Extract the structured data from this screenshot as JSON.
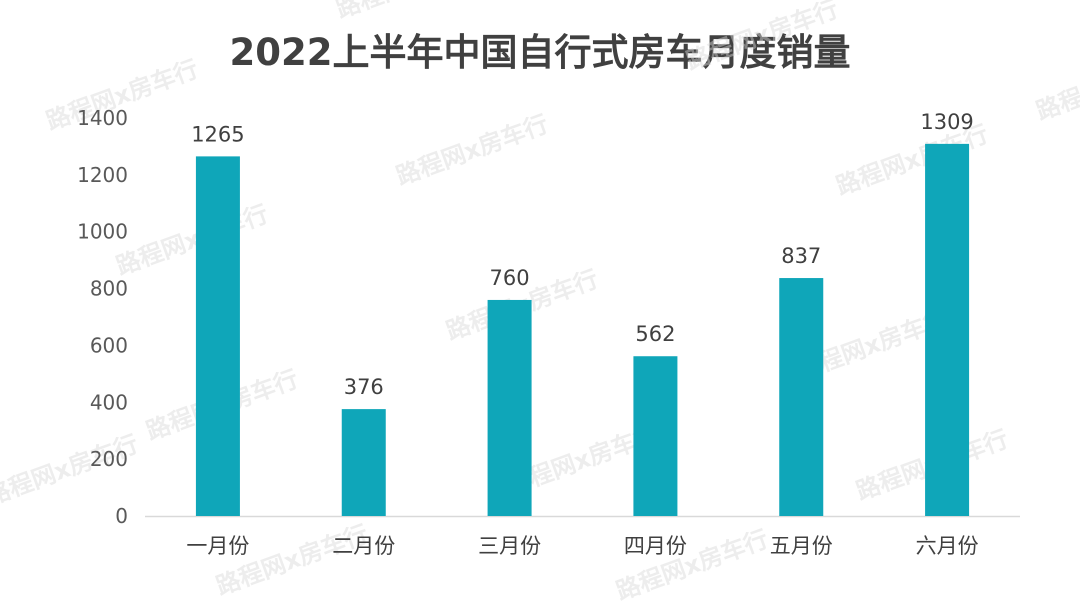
{
  "chart_data": {
    "type": "bar",
    "title": "2022上半年中国自行式房车月度销量",
    "categories": [
      "一月份",
      "二月份",
      "三月份",
      "四月份",
      "五月份",
      "六月份"
    ],
    "values": [
      1265,
      376,
      760,
      562,
      837,
      1309
    ],
    "data_labels": [
      "1265",
      "376",
      "760",
      "562",
      "837",
      "1309"
    ],
    "y_ticks": [
      "0",
      "200",
      "400",
      "600",
      "800",
      "1000",
      "1200",
      "1400"
    ],
    "ylim": [
      0,
      1400
    ],
    "xlabel": "",
    "ylabel": "",
    "grid": false,
    "legend": "none",
    "bar_color": "#0fa6b9",
    "axis_color": "#d9d9d9"
  },
  "watermark": {
    "text": "路程网x房车行"
  }
}
